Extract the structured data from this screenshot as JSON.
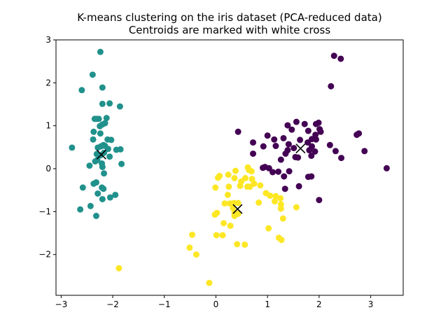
{
  "chart_data": {
    "type": "scatter",
    "title": "K-means clustering on the iris dataset (PCA-reduced data)",
    "subtitle": "Centroids are marked with white cross",
    "xlim": [
      -3.1,
      3.63
    ],
    "ylim": [
      -2.95,
      3.0
    ],
    "xticks": [
      -3,
      -2,
      -1,
      0,
      1,
      2,
      3
    ],
    "yticks": [
      -2,
      -1,
      0,
      1,
      2,
      3
    ],
    "grid": false,
    "colors": {
      "cluster_0": "#440154",
      "cluster_1": "#21918c",
      "cluster_2": "#fde725",
      "centroid": "#000000"
    },
    "series": [
      {
        "color": "#21918c",
        "points": [
          [
            -2.24,
            2.72
          ],
          [
            -2.39,
            2.19
          ],
          [
            -2.6,
            1.83
          ],
          [
            -2.2,
            1.89
          ],
          [
            -2.35,
            1.16
          ],
          [
            -2.31,
            1.16
          ],
          [
            -2.27,
            1.16
          ],
          [
            -2.06,
            1.52
          ],
          [
            -2.2,
            1.51
          ],
          [
            -1.86,
            1.45
          ],
          [
            -2.12,
            1.18
          ],
          [
            -2.15,
            1.06
          ],
          [
            -2.2,
            1.03
          ],
          [
            -2.25,
            0.99
          ],
          [
            -2.37,
            0.86
          ],
          [
            -2.24,
            0.82
          ],
          [
            -2.38,
            0.68
          ],
          [
            -2.03,
            0.67
          ],
          [
            -2.23,
            0.52
          ],
          [
            -2.18,
            0.55
          ],
          [
            -2.09,
            0.46
          ],
          [
            -2.29,
            0.49
          ],
          [
            -1.85,
            0.45
          ],
          [
            -1.93,
            0.44
          ],
          [
            -2.79,
            0.49
          ],
          [
            -2.17,
            0.37
          ],
          [
            -2.31,
            0.34
          ],
          [
            -2.24,
            0.31
          ],
          [
            -2.06,
            0.28
          ],
          [
            -2.34,
            0.17
          ],
          [
            -2.3,
            0.2
          ],
          [
            -2.21,
            0.12
          ],
          [
            -1.83,
            0.11
          ],
          [
            -2.45,
            0.07
          ],
          [
            -2.2,
            0.04
          ],
          [
            -2.17,
            -0.11
          ],
          [
            -2.32,
            -0.32
          ],
          [
            -2.37,
            -0.35
          ],
          [
            -2.58,
            -0.44
          ],
          [
            -2.21,
            -0.44
          ],
          [
            -2.18,
            -0.47
          ],
          [
            -2.29,
            -0.58
          ],
          [
            -1.95,
            -0.61
          ],
          [
            -2.05,
            -0.67
          ],
          [
            -2.2,
            -0.71
          ],
          [
            -2.43,
            -0.87
          ],
          [
            -2.63,
            -0.95
          ],
          [
            -2.32,
            -1.1
          ],
          [
            -2.1,
            0.68
          ],
          [
            -2.15,
            0.53
          ]
        ]
      },
      {
        "color": "#440154",
        "points": [
          [
            2.29,
            2.63
          ],
          [
            2.42,
            2.56
          ],
          [
            2.23,
            1.92
          ],
          [
            1.94,
            1.04
          ],
          [
            1.99,
            1.07
          ],
          [
            1.56,
            1.09
          ],
          [
            1.72,
            1.04
          ],
          [
            1.39,
            1.01
          ],
          [
            2.01,
            0.92
          ],
          [
            1.47,
            0.91
          ],
          [
            1.79,
            0.88
          ],
          [
            2.03,
            0.86
          ],
          [
            0.43,
            0.86
          ],
          [
            2.77,
            0.82
          ],
          [
            2.73,
            0.79
          ],
          [
            1.93,
            0.79
          ],
          [
            1.0,
            0.77
          ],
          [
            1.31,
            0.71
          ],
          [
            1.86,
            0.69
          ],
          [
            1.94,
            0.68
          ],
          [
            1.63,
            0.67
          ],
          [
            1.13,
            0.68
          ],
          [
            1.78,
            0.61
          ],
          [
            0.72,
            0.61
          ],
          [
            1.41,
            0.57
          ],
          [
            2.21,
            0.55
          ],
          [
            1.16,
            0.53
          ],
          [
            1.86,
            0.52
          ],
          [
            0.92,
            0.52
          ],
          [
            1.51,
            0.48
          ],
          [
            1.81,
            0.43
          ],
          [
            1.39,
            0.43
          ],
          [
            2.32,
            0.41
          ],
          [
            2.88,
            0.41
          ],
          [
            1.92,
            0.4
          ],
          [
            1.35,
            0.35
          ],
          [
            0.72,
            0.35
          ],
          [
            1.85,
            0.3
          ],
          [
            1.54,
            0.27
          ],
          [
            1.59,
            0.26
          ],
          [
            2.43,
            0.25
          ],
          [
            1.26,
            0.21
          ],
          [
            0.95,
            0.04
          ],
          [
            0.91,
            0.02
          ],
          [
            1.03,
            0.01
          ],
          [
            3.31,
            0.01
          ],
          [
            1.42,
            -0.06
          ],
          [
            1.21,
            -0.07
          ],
          [
            1.1,
            -0.08
          ],
          [
            1.32,
            -0.18
          ],
          [
            1.79,
            -0.19
          ],
          [
            1.85,
            -0.18
          ],
          [
            1.61,
            -0.41
          ],
          [
            1.34,
            -0.47
          ],
          [
            2.0,
            -0.73
          ]
        ]
      },
      {
        "color": "#fde725",
        "points": [
          [
            0.62,
            0.03
          ],
          [
            0.64,
            -0.03
          ],
          [
            0.69,
            -0.06
          ],
          [
            0.38,
            -0.05
          ],
          [
            0.24,
            -0.14
          ],
          [
            0.07,
            -0.17
          ],
          [
            0.36,
            -0.22
          ],
          [
            0.57,
            -0.22
          ],
          [
            0.04,
            -0.21
          ],
          [
            0.7,
            -0.24
          ],
          [
            0.49,
            -0.3
          ],
          [
            0.74,
            -0.35
          ],
          [
            0.66,
            -0.42
          ],
          [
            0.86,
            -0.39
          ],
          [
            0.47,
            -0.4
          ],
          [
            0.25,
            -0.42
          ],
          [
            0.61,
            -0.42
          ],
          [
            -0.01,
            -0.44
          ],
          [
            0.23,
            -0.61
          ],
          [
            0.97,
            -0.57
          ],
          [
            1.16,
            -0.64
          ],
          [
            1.05,
            -0.63
          ],
          [
            1.25,
            -0.69
          ],
          [
            1.14,
            -0.76
          ],
          [
            1.26,
            -0.83
          ],
          [
            0.83,
            -0.79
          ],
          [
            0.43,
            -0.8
          ],
          [
            0.35,
            -0.8
          ],
          [
            0.17,
            -0.81
          ],
          [
            0.27,
            -0.81
          ],
          [
            1.56,
            -0.9
          ],
          [
            1.26,
            -0.93
          ],
          [
            0.33,
            -0.92
          ],
          [
            0.36,
            -1.03
          ],
          [
            0.43,
            -1.05
          ],
          [
            0.36,
            -1.1
          ],
          [
            0.02,
            -1.03
          ],
          [
            -0.02,
            -1.07
          ],
          [
            1.3,
            -1.16
          ],
          [
            0.15,
            -1.27
          ],
          [
            0.28,
            -1.33
          ],
          [
            1.02,
            -1.39
          ],
          [
            0.01,
            -1.55
          ],
          [
            -0.46,
            -1.54
          ],
          [
            0.13,
            -1.55
          ],
          [
            1.22,
            -1.61
          ],
          [
            1.27,
            -1.66
          ],
          [
            0.41,
            -1.76
          ],
          [
            0.56,
            -1.77
          ],
          [
            -0.51,
            -1.84
          ],
          [
            -0.38,
            -2.0
          ],
          [
            -1.88,
            -2.32
          ],
          [
            -0.13,
            -2.66
          ]
        ]
      }
    ],
    "centroids": [
      [
        -2.22,
        0.33
      ],
      [
        1.64,
        0.47
      ],
      [
        0.42,
        -0.94
      ]
    ]
  }
}
